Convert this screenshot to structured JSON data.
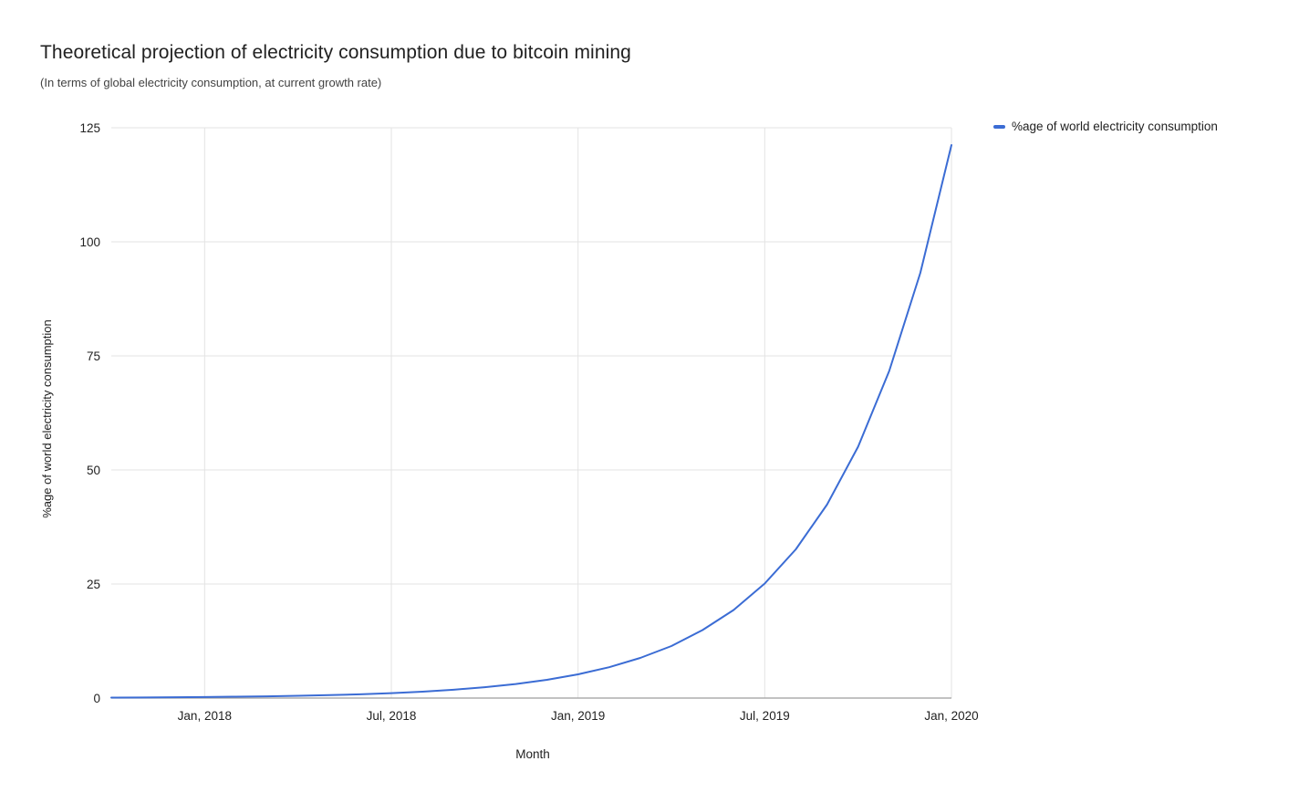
{
  "chart_data": {
    "type": "line",
    "title": "Theoretical projection of electricity consumption due to bitcoin mining",
    "subtitle": "(In terms of global electricity consumption, at current growth rate)",
    "xlabel": "Month",
    "ylabel": "%age of world electricity consumption",
    "legend_position": "top-right",
    "grid": true,
    "ylim": [
      0,
      125
    ],
    "y_ticks": [
      0,
      25,
      50,
      75,
      100,
      125
    ],
    "x": [
      "Oct, 2017",
      "Nov, 2017",
      "Dec, 2017",
      "Jan, 2018",
      "Feb, 2018",
      "Mar, 2018",
      "Apr, 2018",
      "May, 2018",
      "Jun, 2018",
      "Jul, 2018",
      "Aug, 2018",
      "Sep, 2018",
      "Oct, 2018",
      "Nov, 2018",
      "Dec, 2018",
      "Jan, 2019",
      "Feb, 2019",
      "Mar, 2019",
      "Apr, 2019",
      "May, 2019",
      "Jun, 2019",
      "Jul, 2019",
      "Aug, 2019",
      "Sep, 2019",
      "Oct, 2019",
      "Nov, 2019",
      "Dec, 2019",
      "Jan, 2020"
    ],
    "x_tick_indices": [
      3,
      9,
      15,
      21,
      27
    ],
    "x_tick_labels": [
      "Jan, 2018",
      "Jul, 2018",
      "Jan, 2019",
      "Jul, 2019",
      "Jan, 2020"
    ],
    "series": [
      {
        "name": "%age of world electricity consumption",
        "color": "#3b6cd4",
        "values": [
          0.1,
          0.13,
          0.17,
          0.22,
          0.29,
          0.38,
          0.49,
          0.64,
          0.83,
          1.08,
          1.4,
          1.82,
          2.37,
          3.08,
          4.0,
          5.2,
          6.76,
          8.79,
          11.4,
          14.9,
          19.3,
          25.1,
          32.6,
          42.4,
          55.1,
          71.7,
          93.2,
          121.2
        ]
      }
    ],
    "colors": {
      "gridline": "#e3e3e3",
      "axis_line": "#9e9e9e",
      "tick_text": "#222222"
    }
  }
}
